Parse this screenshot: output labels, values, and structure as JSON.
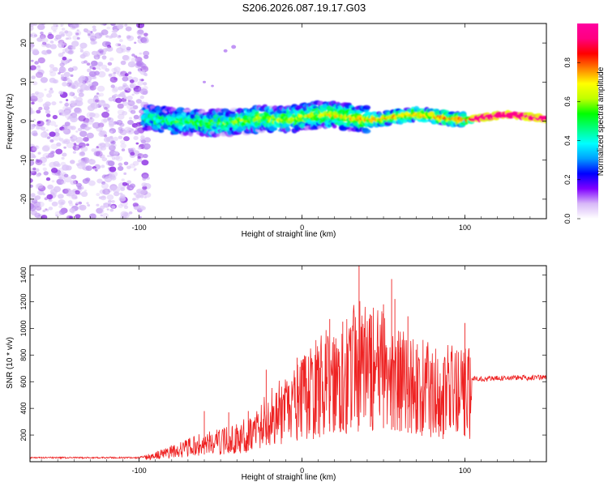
{
  "title": "S206.2026.087.19.17.G03",
  "colors": {
    "snr_line": "#ee2222",
    "axis": "#000000"
  },
  "chart_data": [
    {
      "type": "heatmap",
      "name": "spectrogram",
      "xlabel": "Height of straight line (km)",
      "ylabel": "Frequency (Hz)",
      "xlim": [
        -167,
        150
      ],
      "ylim": [
        -25,
        25
      ],
      "xticks": [
        -100,
        0,
        100
      ],
      "xtick_labels": [
        "-100",
        "0",
        "100"
      ],
      "yticks": [
        -20,
        -10,
        0,
        10,
        20
      ],
      "ytick_labels": [
        "-20",
        "-10",
        "0",
        "10",
        "20"
      ],
      "noise_region_x": [
        -167,
        -96
      ],
      "signal_center_hz": 1,
      "colorbar": {
        "label": "Normalized spectral amplitude",
        "range": [
          0,
          1
        ],
        "ticks": [
          0.0,
          0.2,
          0.4,
          0.6,
          0.8
        ],
        "tick_labels": [
          "0.0",
          "0.2",
          "0.4",
          "0.6",
          "0.8"
        ],
        "colors": [
          "#ffffff",
          "#d8b8f8",
          "#8000ff",
          "#0000ff",
          "#00a0ff",
          "#00ffff",
          "#00ff80",
          "#00ff00",
          "#c0ff00",
          "#ffff00",
          "#ff8000",
          "#ff0000",
          "#ff0080",
          "#ff00a0"
        ]
      }
    },
    {
      "type": "line",
      "name": "snr",
      "xlabel": "Height of straight line (km)",
      "ylabel": "SNR (10 * v/v)",
      "xlim": [
        -167,
        150
      ],
      "ylim": [
        0,
        1470
      ],
      "xticks": [
        -100,
        0,
        100
      ],
      "xtick_labels": [
        "-100",
        "0",
        "100"
      ],
      "yticks": [
        200,
        400,
        600,
        800,
        1000,
        1200,
        1400
      ],
      "ytick_labels": [
        "200",
        "400",
        "600",
        "800",
        "1000",
        "1200",
        "1400"
      ],
      "envelope": {
        "x": [
          -167,
          -100,
          -90,
          -80,
          -70,
          -60,
          -50,
          -40,
          -30,
          -22,
          -15,
          -10,
          0,
          10,
          20,
          30,
          35,
          40,
          50,
          60,
          70,
          80,
          90,
          100,
          104,
          110,
          120,
          130,
          140,
          150
        ],
        "y": [
          30,
          30,
          60,
          100,
          140,
          180,
          200,
          230,
          300,
          420,
          450,
          460,
          580,
          700,
          780,
          860,
          900,
          880,
          840,
          760,
          700,
          660,
          650,
          640,
          630,
          620,
          625,
          630,
          630,
          635
        ]
      },
      "peaks": {
        "x": [
          -60,
          -45,
          -33,
          -22,
          -3,
          10,
          17,
          20,
          25,
          30,
          35,
          42,
          50,
          55,
          57,
          60,
          65,
          70,
          100
        ],
        "y": [
          380,
          370,
          380,
          690,
          780,
          750,
          1070,
          880,
          1050,
          990,
          1470,
          1100,
          1180,
          1370,
          1220,
          820,
          1090,
          840,
          1040
        ]
      }
    }
  ]
}
